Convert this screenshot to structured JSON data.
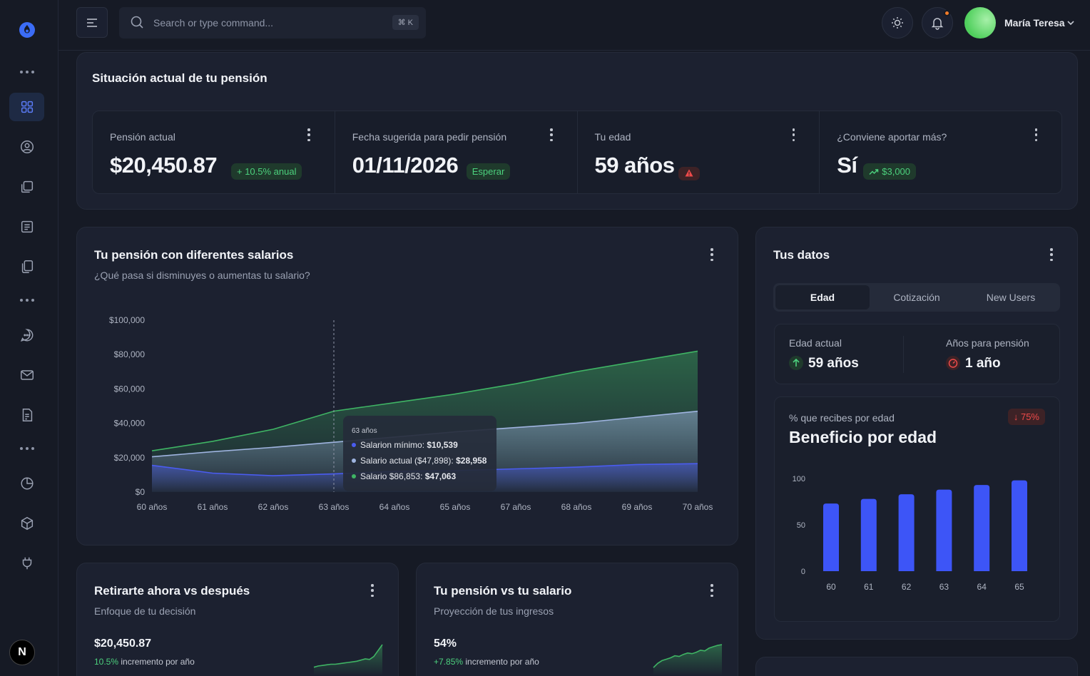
{
  "sidebar": {
    "items": [
      {
        "icon": "grid-icon",
        "active": true
      },
      {
        "icon": "user-circle-icon"
      },
      {
        "icon": "copy-icon"
      },
      {
        "icon": "file-text-icon"
      },
      {
        "icon": "documents-icon"
      },
      {
        "icon": "chat-icon"
      },
      {
        "icon": "mail-icon"
      },
      {
        "icon": "invoice-icon"
      },
      {
        "icon": "pie-chart-icon"
      },
      {
        "icon": "cube-icon"
      },
      {
        "icon": "plug-icon"
      }
    ],
    "bottom_badge": "N"
  },
  "topbar": {
    "search_placeholder": "Search or type command...",
    "shortcut": "⌘ K",
    "user_name": "María Teresa"
  },
  "summary": {
    "title": "Situación actual de tu pensión",
    "stats": [
      {
        "label": "Pensión actual",
        "value": "$20,450.87",
        "badge": "+ 10.5% anual",
        "badge_type": "green"
      },
      {
        "label": "Fecha sugerida para pedir pensión",
        "value": "01/11/2026",
        "badge": "Esperar",
        "badge_type": "green"
      },
      {
        "label": "Tu edad",
        "value": "59 años",
        "badge": "",
        "badge_type": "red-warning"
      },
      {
        "label": "¿Conviene aportar más?",
        "value": "Sí",
        "badge": "$3,000",
        "badge_type": "green-trend"
      }
    ]
  },
  "salary_chart": {
    "title": "Tu pensión con diferentes salarios",
    "subtitle": "¿Qué pasa si disminuyes o aumentas tu salario?",
    "tooltip": {
      "title": "63 años",
      "rows": [
        {
          "label": "Salarion mínimo:",
          "value": "$10,539",
          "color": "#4a5cf0"
        },
        {
          "label": "Salario actual ($47,898):",
          "value": "$28,958",
          "color": "#9fb4e0"
        },
        {
          "label": "Salario $86,853:",
          "value": "$47,063",
          "color": "#3fb464"
        }
      ]
    }
  },
  "chart_data": [
    {
      "type": "area",
      "title": "Tu pensión con diferentes salarios",
      "categories": [
        "60 años",
        "61 años",
        "62 años",
        "63 años",
        "64 años",
        "65 años",
        "67 años",
        "68 años",
        "69 años",
        "70 años"
      ],
      "y_ticks": [
        "$0",
        "$20,000",
        "$40,000",
        "$60,000",
        "$80,000",
        "$100,000"
      ],
      "ylim": [
        0,
        100000
      ],
      "series": [
        {
          "name": "Salario $86,853",
          "color": "#3fb464",
          "values": [
            24000,
            29500,
            36500,
            47063,
            52000,
            57000,
            63000,
            70000,
            76000,
            82000
          ]
        },
        {
          "name": "Salario actual ($47,898)",
          "color": "#9fb4e0",
          "values": [
            20500,
            23500,
            26000,
            28958,
            32000,
            35000,
            37500,
            40000,
            43500,
            47000
          ]
        },
        {
          "name": "Salarion mínimo",
          "color": "#4a5cf0",
          "values": [
            15500,
            11000,
            9500,
            10539,
            12000,
            12500,
            13500,
            14500,
            16000,
            16500
          ]
        }
      ],
      "highlight_index": 3
    },
    {
      "type": "bar",
      "title": "Beneficio por edad",
      "categories": [
        "60",
        "61",
        "62",
        "63",
        "64",
        "65"
      ],
      "values": [
        73,
        78,
        83,
        88,
        93,
        98
      ],
      "y_ticks": [
        "0",
        "50",
        "100"
      ],
      "ylim": [
        0,
        100
      ],
      "color": "#3d55f7"
    },
    {
      "type": "line",
      "title": "Retirarte ahora vs después",
      "values": [
        10,
        12,
        13,
        14,
        15,
        15,
        16,
        17,
        18,
        19,
        20,
        22,
        24,
        23,
        28,
        38,
        48
      ]
    },
    {
      "type": "line",
      "title": "Tu pensión vs tu salario",
      "values": [
        8,
        14,
        18,
        20,
        22,
        25,
        24,
        27,
        29,
        28,
        30,
        33,
        32,
        36,
        38,
        40,
        41
      ]
    }
  ],
  "tus_datos": {
    "title": "Tus datos",
    "tabs": [
      "Edad",
      "Cotización",
      "New Users"
    ],
    "edad_actual_label": "Edad actual",
    "edad_actual_value": "59 años",
    "anios_label": "Años para pensión",
    "anios_value": "1 año",
    "beneficio_sublabel": "% que recibes por edad",
    "beneficio_title": "Beneficio por edad",
    "beneficio_badge": "↓ 75%"
  },
  "retirarte": {
    "title": "Retirarte ahora vs después",
    "subtitle": "Enfoque de tu decisión",
    "value": "$20,450.87",
    "pct": "10.5%",
    "pct_label": "incremento por año"
  },
  "pension_salario": {
    "title": "Tu pensión vs tu salario",
    "subtitle": "Proyección de tus ingresos",
    "value": "54%",
    "pct": "+7.85%",
    "pct_label": "incremento por año"
  }
}
